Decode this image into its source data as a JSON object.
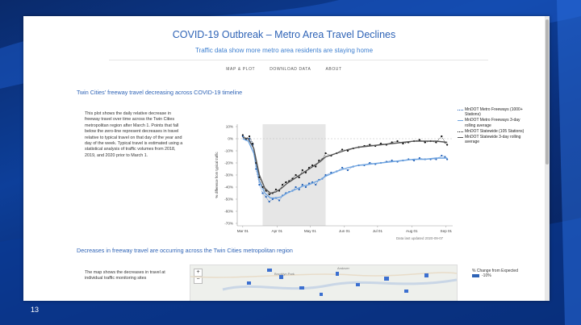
{
  "slide_number": "13",
  "header": {
    "title": "COVID-19 Outbreak – Metro Area Travel Declines",
    "subtitle": "Traffic data show more metro area residents are staying home"
  },
  "nav": [
    "MAP & PLOT",
    "DOWNLOAD DATA",
    "ABOUT"
  ],
  "section1": {
    "heading": "Twin Cities' freeway travel decreasing across COVID-19 timeline",
    "description": "This plot shows the daily relative decrease in freeway travel over time across the Twin Cities metropolitan region after March 1. Points that fall below the zero-line represent decreases in travel relative to typical travel on that day of the year and day of the week. Typical travel is estimated using a statistical analysis of traffic volumes from 2018, 2019, and 2020 prior to March 1."
  },
  "section2": {
    "heading": "Decreases in freeway travel are occurring across the Twin Cities metropolitan region",
    "description": "The map shows the decreases in travel at individual traffic monitoring sites"
  },
  "map": {
    "zoom_in": "+",
    "zoom_out": "−",
    "labels": [
      "Brooklyn Park",
      "Andover"
    ],
    "legend_title": "% Change from Expected",
    "legend_value": "-10%"
  },
  "chart_data": {
    "type": "line",
    "title": "",
    "xlabel": "",
    "ylabel": "% difference from typical traffic",
    "x_ticks": [
      "Mar 01",
      "Apr 01",
      "May 01",
      "Jun 01",
      "Jul 01",
      "Aug 01",
      "Sep 01"
    ],
    "y_ticks": [
      "10%",
      "0%",
      "-10%",
      "-20%",
      "-30%",
      "-40%",
      "-50%",
      "-60%",
      "-70%"
    ],
    "ylim": [
      -72,
      12
    ],
    "xlim_days": [
      -5,
      190
    ],
    "shaded_region_days": [
      18,
      75
    ],
    "updated": "Data last updated 2020-09-07",
    "series": [
      {
        "name": "MnDOT Metro Freeways (1000+ Stations)",
        "color": "#1f5fb8",
        "style": "points",
        "days": [
          0,
          3,
          6,
          9,
          12,
          15,
          18,
          21,
          24,
          27,
          30,
          33,
          36,
          39,
          42,
          45,
          48,
          51,
          54,
          57,
          60,
          63,
          66,
          69,
          72,
          75,
          80,
          85,
          90,
          95,
          100,
          105,
          110,
          115,
          120,
          125,
          130,
          135,
          140,
          145,
          150,
          155,
          160,
          165,
          170,
          175,
          180,
          183,
          185
        ],
        "values": [
          2,
          -1,
          0,
          -5,
          -25,
          -38,
          -45,
          -48,
          -52,
          -50,
          -49,
          -51,
          -47,
          -45,
          -44,
          -43,
          -40,
          -42,
          -38,
          -40,
          -37,
          -36,
          -38,
          -34,
          -33,
          -30,
          -28,
          -27,
          -24,
          -26,
          -23,
          -22,
          -22,
          -20,
          -21,
          -20,
          -19,
          -18,
          -19,
          -18,
          -17,
          -18,
          -16,
          -17,
          -17,
          -17,
          -14,
          -15,
          -17
        ]
      },
      {
        "name": "MnDOT Metro Freeways 3-day rolling average",
        "color": "#6fa4e0",
        "style": "line",
        "days": [
          0,
          5,
          10,
          15,
          20,
          25,
          30,
          35,
          40,
          45,
          50,
          55,
          60,
          65,
          70,
          75,
          85,
          95,
          105,
          115,
          125,
          135,
          145,
          155,
          165,
          175,
          185
        ],
        "values": [
          0,
          -2,
          -12,
          -35,
          -45,
          -49,
          -49,
          -48,
          -45,
          -43,
          -41,
          -39,
          -38,
          -36,
          -34,
          -31,
          -27,
          -24,
          -22,
          -21,
          -20,
          -19,
          -18,
          -17,
          -17,
          -16,
          -16
        ]
      },
      {
        "name": "MnDOT Statewide (105 Stations)",
        "color": "#111111",
        "style": "points",
        "days": [
          0,
          3,
          6,
          9,
          12,
          15,
          18,
          21,
          24,
          27,
          30,
          33,
          36,
          39,
          42,
          45,
          48,
          51,
          54,
          57,
          60,
          63,
          66,
          69,
          72,
          75,
          80,
          85,
          90,
          95,
          100,
          105,
          110,
          115,
          120,
          125,
          130,
          135,
          140,
          145,
          150,
          155,
          160,
          165,
          170,
          175,
          180,
          183,
          185
        ],
        "values": [
          3,
          0,
          2,
          -4,
          -20,
          -32,
          -40,
          -43,
          -46,
          -45,
          -42,
          -43,
          -38,
          -36,
          -35,
          -33,
          -30,
          -32,
          -26,
          -28,
          -24,
          -22,
          -23,
          -18,
          -17,
          -12,
          -14,
          -12,
          -9,
          -10,
          -8,
          -7,
          -6,
          -5,
          -6,
          -4,
          -5,
          -3,
          -2,
          -4,
          -3,
          -2,
          -1,
          -3,
          -2,
          -3,
          2,
          -3,
          -5
        ]
      },
      {
        "name": "MnDOT Statewide 3-day rolling average",
        "color": "#555555",
        "style": "line",
        "days": [
          0,
          5,
          10,
          15,
          20,
          25,
          30,
          35,
          40,
          45,
          50,
          55,
          60,
          65,
          70,
          75,
          85,
          95,
          105,
          115,
          125,
          135,
          145,
          155,
          165,
          175,
          185
        ],
        "values": [
          1,
          0,
          -8,
          -30,
          -41,
          -45,
          -44,
          -41,
          -37,
          -34,
          -31,
          -28,
          -25,
          -22,
          -19,
          -15,
          -12,
          -9,
          -7,
          -6,
          -5,
          -4,
          -3,
          -2,
          -2,
          -2,
          -3
        ]
      }
    ]
  }
}
